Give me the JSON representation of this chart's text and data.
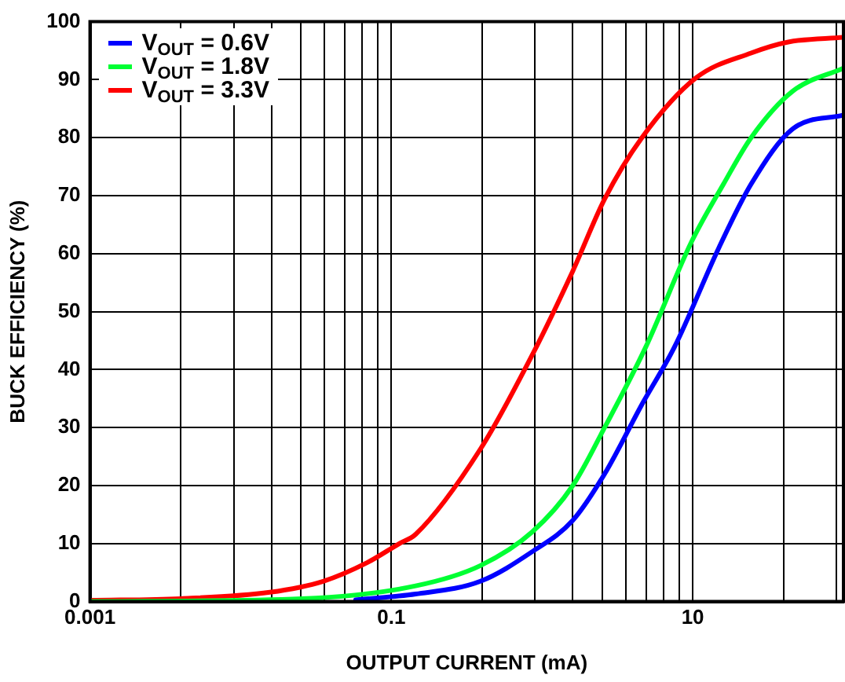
{
  "chart_data": {
    "type": "line",
    "xlabel": "OUTPUT CURRENT (mA)",
    "ylabel": "BUCK EFFICIENCY (%)",
    "log": "x",
    "xlim": [
      0.001,
      100
    ],
    "xticks": [
      0.001,
      {
        "value": 0.004,
        "label": null
      },
      {
        "value": 0.009,
        "label": null
      },
      {
        "value": 0.016,
        "label": null
      },
      {
        "value": 0.025,
        "label": null
      },
      {
        "value": 0.036,
        "label": null
      },
      {
        "value": 0.049,
        "label": null
      },
      {
        "value": 0.064,
        "label": null
      },
      {
        "value": 0.081,
        "label": null
      },
      0.1,
      {
        "value": 0.4,
        "label": null
      },
      {
        "value": 0.9,
        "label": null
      },
      {
        "value": 1.6,
        "label": null
      },
      {
        "value": 2.5,
        "label": null
      },
      {
        "value": 3.6,
        "label": null
      },
      {
        "value": 4.9,
        "label": null
      },
      {
        "value": 6.4,
        "label": null
      },
      {
        "value": 8.1,
        "label": null
      },
      10,
      {
        "value": 40,
        "label": null
      },
      {
        "value": 90,
        "label": null
      }
    ],
    "ylim": [
      0,
      100
    ],
    "yticks": [
      0,
      10,
      20,
      30,
      40,
      50,
      60,
      70,
      80,
      90,
      100
    ],
    "grid": true,
    "legend": "top left",
    "marker": "none",
    "line_style": "solid",
    "series": [
      {
        "name": "V$_{OUT}$ = 0.6V",
        "color": "#0000ff",
        "x": [
          0.058,
          0.145,
          0.39,
          0.86,
          1.6,
          2.6,
          4.6,
          7.6,
          14.9,
          24.4,
          46,
          100
        ],
        "values": [
          0.3,
          1.3,
          3.5,
          8.6,
          14,
          22,
          34,
          44,
          61,
          72,
          81.5,
          83.9
        ]
      },
      {
        "name": "V$_{OUT}$ = 1.8V",
        "color": "#00ff33",
        "x": [
          0.001,
          0.0256,
          0.145,
          0.39,
          0.86,
          1.6,
          2.6,
          4.9,
          9.8,
          16,
          24.4,
          46,
          100
        ],
        "values": [
          0,
          0.5,
          2.7,
          6.2,
          12,
          20,
          30,
          44,
          62,
          72,
          80,
          88,
          92
        ]
      },
      {
        "name": "V$_{OUT}$ = 3.3V",
        "color": "#ff0000",
        "x": [
          0.001,
          0.004,
          0.0156,
          0.0353,
          0.069,
          0.113,
          0.145,
          0.39,
          0.86,
          1.6,
          2.6,
          4.6,
          10.5,
          24.4,
          43,
          100
        ],
        "values": [
          0.2,
          0.5,
          1.6,
          3.5,
          6.7,
          10,
          11.6,
          26.3,
          42.5,
          57,
          69.4,
          80,
          90.3,
          94.6,
          96.5,
          97.3
        ]
      }
    ]
  }
}
